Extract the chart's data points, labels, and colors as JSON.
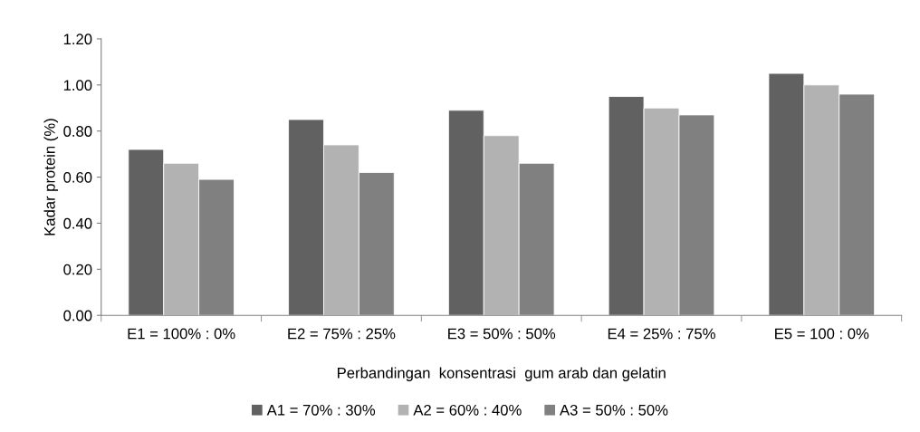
{
  "chart_data": {
    "type": "bar",
    "xlabel": "Perbandingan  konsentrasi  gum arab dan gelatin",
    "ylabel": "Kadar protein (%)",
    "categories": [
      "E1 = 100% : 0%",
      "E2 = 75% : 25%",
      "E3 = 50% : 50%",
      "E4 = 25% : 75%",
      "E5 = 100 : 0%"
    ],
    "series": [
      {
        "name": "A1 = 70% : 30%",
        "color": "#616161",
        "values": [
          0.72,
          0.85,
          0.89,
          0.95,
          1.05
        ]
      },
      {
        "name": "A2 = 60% : 40%",
        "color": "#b2b2b2",
        "values": [
          0.66,
          0.74,
          0.78,
          0.9,
          1.0
        ]
      },
      {
        "name": "A3 = 50% : 50%",
        "color": "#808080",
        "values": [
          0.59,
          0.62,
          0.66,
          0.87,
          0.96
        ]
      }
    ],
    "ylim": [
      0,
      1.2
    ],
    "yticks": [
      {
        "value": 0,
        "label": "0.00"
      },
      {
        "value": 0.2,
        "label": "0.20"
      },
      {
        "value": 0.4,
        "label": "0.40"
      },
      {
        "value": 0.6,
        "label": "0.60"
      },
      {
        "value": 0.8,
        "label": "0.80"
      },
      {
        "value": 1.0,
        "label": "1.00"
      },
      {
        "value": 1.2,
        "label": "1.20"
      }
    ],
    "grid": false,
    "legend": "bottom"
  }
}
